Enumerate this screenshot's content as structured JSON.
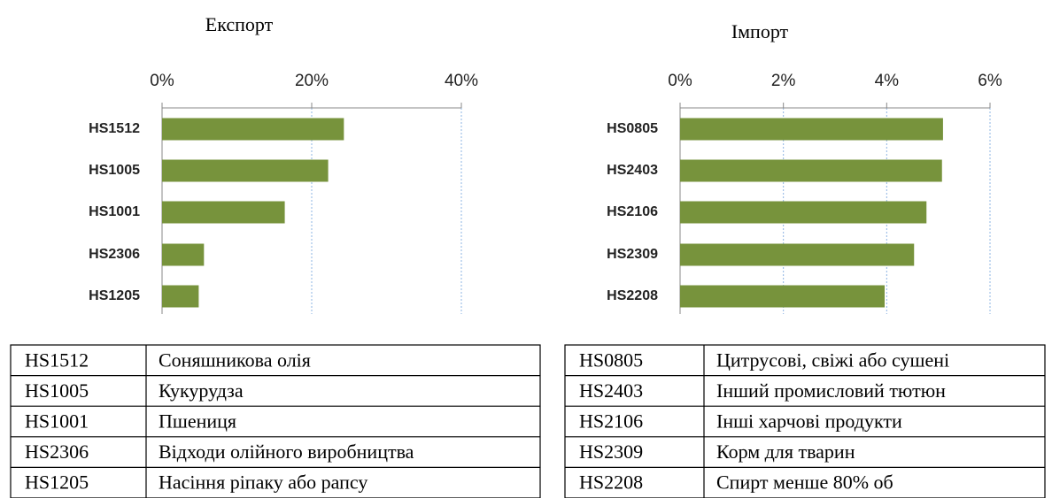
{
  "chart_data": [
    {
      "type": "bar",
      "orientation": "horizontal",
      "title": "Експорт",
      "categories": [
        "HS1512",
        "HS1005",
        "HS1001",
        "HS2306",
        "HS1205"
      ],
      "values": [
        24.3,
        22.2,
        16.4,
        5.6,
        4.9
      ],
      "color": "#77933c",
      "xlim": [
        0,
        40
      ],
      "xticks": [
        {
          "value": 0,
          "label": "0%"
        },
        {
          "value": 20,
          "label": "20%"
        },
        {
          "value": 40,
          "label": "40%"
        }
      ],
      "grid": true
    },
    {
      "type": "bar",
      "orientation": "horizontal",
      "title": "Імпорт",
      "categories": [
        "HS0805",
        "HS2403",
        "HS2106",
        "HS2309",
        "HS2208"
      ],
      "values": [
        5.09,
        5.07,
        4.77,
        4.53,
        3.96
      ],
      "color": "#77933c",
      "xlim": [
        0,
        6
      ],
      "xticks": [
        {
          "value": 0,
          "label": "0%"
        },
        {
          "value": 2,
          "label": "2%"
        },
        {
          "value": 4,
          "label": "4%"
        },
        {
          "value": 6,
          "label": "6%"
        }
      ],
      "grid": true
    }
  ],
  "tables": [
    {
      "rows": [
        [
          "HS1512",
          "Соняшникова олія"
        ],
        [
          "HS1005",
          "Кукурудза"
        ],
        [
          "HS1001",
          "Пшениця"
        ],
        [
          "HS2306",
          "Відходи олійного виробництва"
        ],
        [
          "HS1205",
          "Насіння ріпаку або рапсу"
        ]
      ]
    },
    {
      "rows": [
        [
          "HS0805",
          "Цитрусові, свіжі або сушені"
        ],
        [
          "HS2403",
          "Інший промисловий тютюн"
        ],
        [
          "HS2106",
          "Інші харчові продукти"
        ],
        [
          "HS2309",
          "Корм для тварин"
        ],
        [
          "HS2208",
          "Спирт менше 80% об"
        ]
      ]
    }
  ]
}
